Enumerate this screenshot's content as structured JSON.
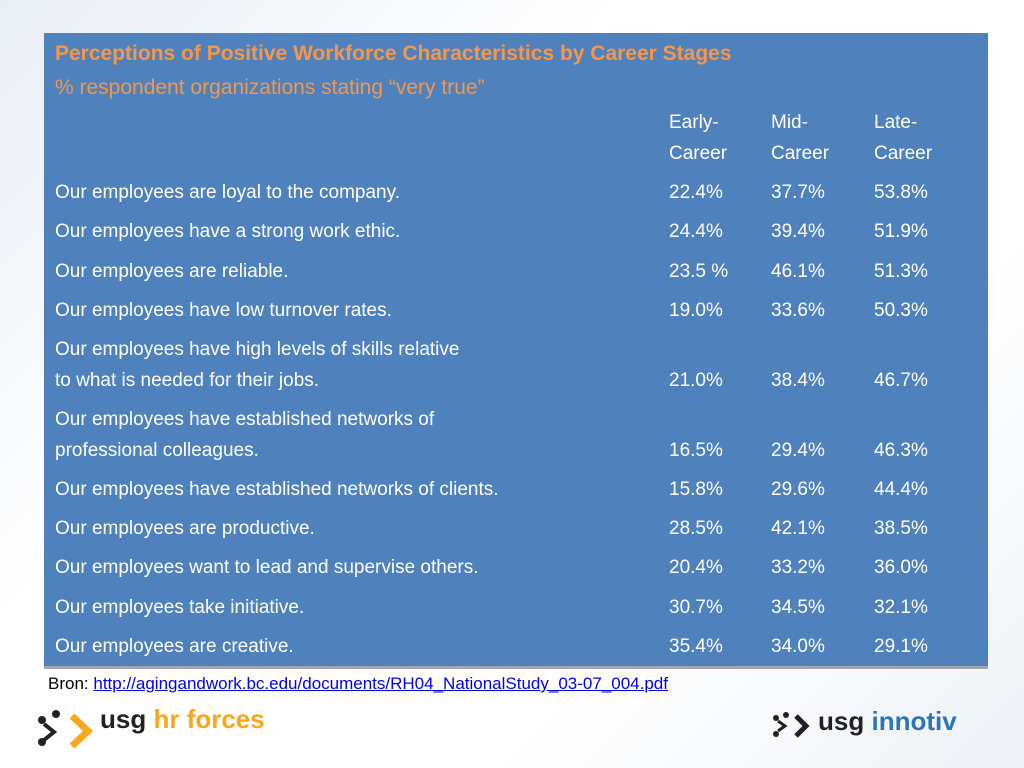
{
  "title": "Perceptions of Positive Workforce Characteristics by Career Stages",
  "subtitle": "% respondent organizations stating “very true”",
  "table": {
    "columns": [
      [
        "Early-",
        "Career"
      ],
      [
        "Mid-",
        "Career"
      ],
      [
        "Late-",
        "Career"
      ]
    ],
    "rows": [
      [
        [
          "Our employees are loyal to the company."
        ],
        "22.4%",
        "37.7%",
        "53.8%"
      ],
      [
        [
          "Our employees have a strong work ethic."
        ],
        "24.4%",
        "39.4%",
        "51.9%"
      ],
      [
        [
          "Our employees are reliable."
        ],
        "23.5 %",
        "46.1%",
        "51.3%"
      ],
      [
        [
          "Our employees have low turnover rates."
        ],
        "19.0%",
        "33.6%",
        "50.3%"
      ],
      [
        [
          "Our employees have high levels of skills relative",
          "to what is needed for their jobs."
        ],
        "21.0%",
        "38.4%",
        "46.7%"
      ],
      [
        [
          "Our employees have established networks of",
          "professional colleagues."
        ],
        "16.5%",
        "29.4%",
        "46.3%"
      ],
      [
        [
          "Our employees have established networks of clients."
        ],
        "15.8%",
        "29.6%",
        "44.4%"
      ],
      [
        [
          "Our employees are productive."
        ],
        "28.5%",
        "42.1%",
        "38.5%"
      ],
      [
        [
          "Our employees want to lead and supervise others."
        ],
        "20.4%",
        "33.2%",
        "36.0%"
      ],
      [
        [
          "Our employees take initiative."
        ],
        "30.7%",
        "34.5%",
        "32.1%"
      ],
      [
        [
          "Our employees are creative."
        ],
        "35.4%",
        "34.0%",
        "29.1%"
      ]
    ]
  },
  "source": {
    "label": "Bron:",
    "link": "http://agingandwork.bc.edu/documents/RH04_NationalStudy_03-07_004.pdf"
  },
  "logos": [
    {
      "brand": "usg",
      "product": "hr forces"
    },
    {
      "brand": "usg",
      "product": "innotiv"
    }
  ]
}
